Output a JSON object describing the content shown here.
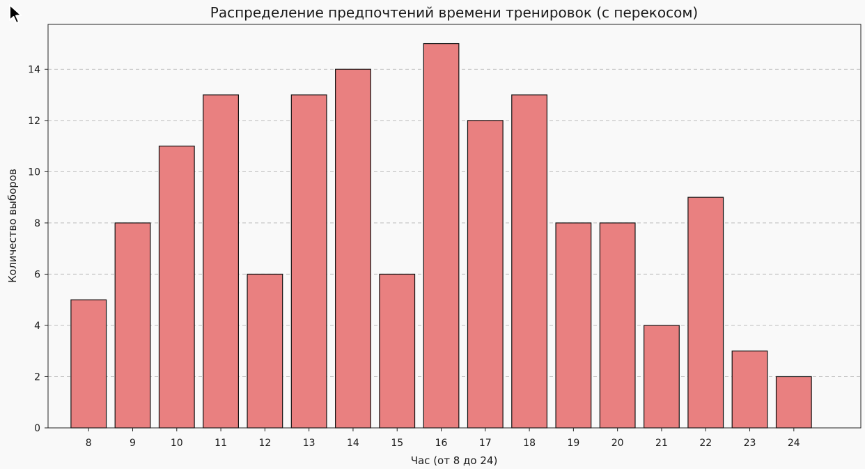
{
  "chart_data": {
    "type": "bar",
    "title": "Распределение предпочтений времени тренировок (с перекосом)",
    "xlabel": "Час (от 8 до 24)",
    "ylabel": "Количество выборов",
    "categories": [
      "8",
      "9",
      "10",
      "11",
      "12",
      "13",
      "14",
      "15",
      "16",
      "17",
      "18",
      "19",
      "20",
      "21",
      "22",
      "23",
      "24"
    ],
    "values": [
      5,
      8,
      11,
      13,
      6,
      13,
      14,
      6,
      15,
      12,
      13,
      8,
      8,
      4,
      9,
      3,
      2
    ],
    "ylim": [
      0,
      15.75
    ],
    "yticks": [
      0,
      2,
      4,
      6,
      8,
      10,
      12,
      14
    ],
    "grid": "y-dashed",
    "bar_color": "#e98080",
    "edge_color": "#111111"
  },
  "icons": {
    "cursor": "mouse-pointer-icon"
  }
}
